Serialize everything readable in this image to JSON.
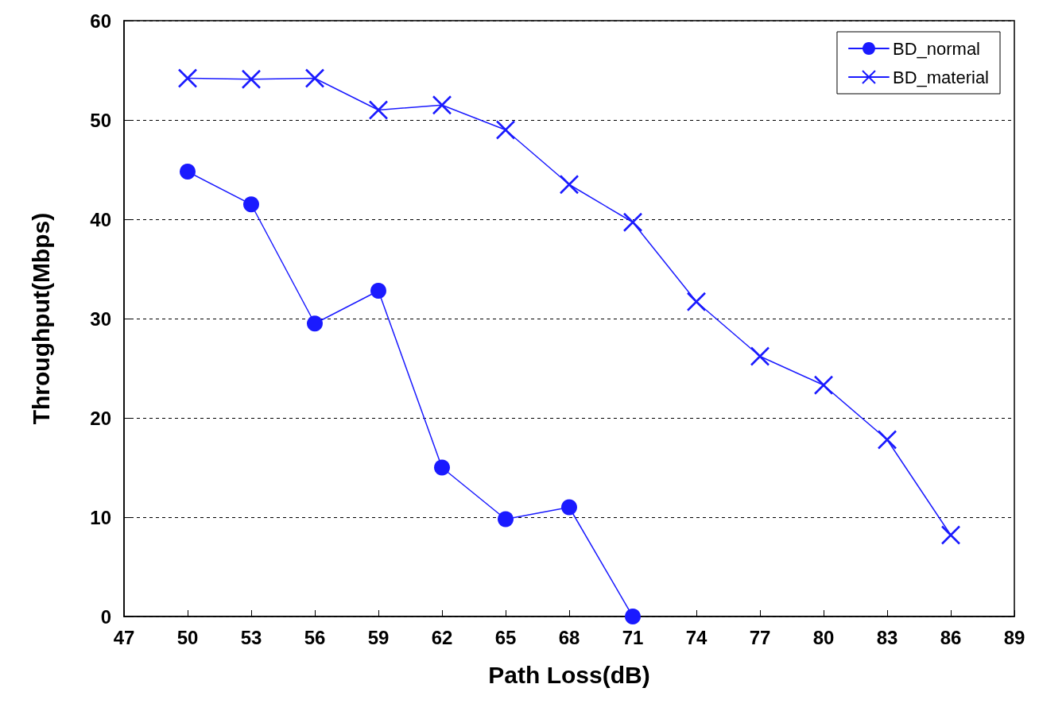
{
  "chart_data": {
    "type": "line",
    "xlabel": "Path Loss(dB)",
    "ylabel": "Throughput(Mbps)",
    "x": [
      50,
      53,
      56,
      59,
      62,
      65,
      68,
      71,
      74,
      77,
      80,
      83,
      86
    ],
    "series": [
      {
        "name": "BD_normal",
        "color": "#1a1aff",
        "marker": "circle",
        "values": [
          44.8,
          41.5,
          29.5,
          32.8,
          15,
          9.8,
          11,
          0,
          null,
          null,
          null,
          null,
          null
        ]
      },
      {
        "name": "BD_material",
        "color": "#1a1aff",
        "marker": "cross",
        "values": [
          54.2,
          54.1,
          54.2,
          51,
          51.5,
          49,
          43.5,
          39.7,
          31.7,
          26.2,
          23.3,
          17.8,
          8.2
        ]
      }
    ],
    "xlim": [
      47,
      89
    ],
    "xticks": [
      47,
      50,
      53,
      56,
      59,
      62,
      65,
      68,
      71,
      74,
      77,
      80,
      83,
      86,
      89
    ],
    "ylim": [
      0,
      60
    ],
    "yticks": [
      0,
      10,
      20,
      30,
      40,
      50,
      60
    ],
    "grid": "y",
    "legend": "top right",
    "line_style": "solid"
  }
}
